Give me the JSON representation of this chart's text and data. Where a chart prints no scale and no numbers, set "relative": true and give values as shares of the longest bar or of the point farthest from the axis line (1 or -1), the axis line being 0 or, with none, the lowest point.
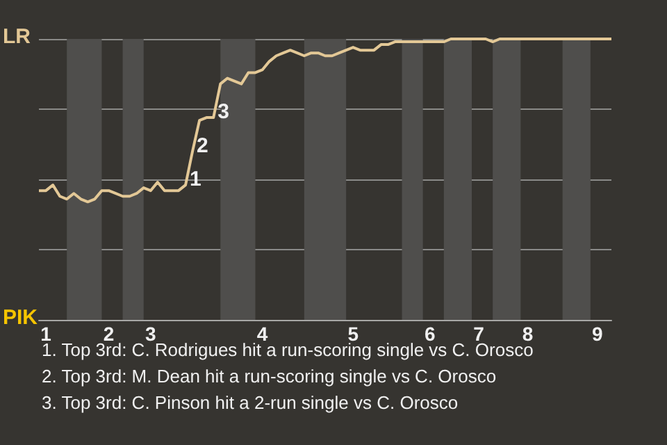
{
  "chart_data": {
    "type": "line",
    "relative": true,
    "categories": [
      null,
      "1",
      null,
      null,
      null,
      null,
      null,
      null,
      null,
      null,
      "2",
      null,
      null,
      null,
      null,
      null,
      "3",
      null,
      null,
      null,
      null,
      null,
      null,
      null,
      null,
      null,
      null,
      null,
      null,
      null,
      null,
      null,
      "4",
      null,
      null,
      null,
      null,
      null,
      null,
      null,
      null,
      null,
      null,
      null,
      null,
      "5",
      null,
      null,
      null,
      null,
      null,
      null,
      null,
      null,
      null,
      null,
      "6",
      null,
      null,
      null,
      null,
      null,
      null,
      "7",
      null,
      null,
      null,
      null,
      null,
      null,
      "8",
      null,
      null,
      null,
      null,
      null,
      null,
      null,
      null,
      null,
      "9",
      null,
      null
    ],
    "series": [
      {
        "color": "#e3c896",
        "values": [
          0.46,
          0.46,
          0.48,
          0.44,
          0.43,
          0.45,
          0.43,
          0.42,
          0.43,
          0.46,
          0.46,
          0.45,
          0.44,
          0.44,
          0.45,
          0.47,
          0.46,
          0.49,
          0.46,
          0.46,
          0.46,
          0.48,
          0.6,
          0.71,
          0.72,
          0.72,
          0.84,
          0.86,
          0.85,
          0.84,
          0.88,
          0.88,
          0.89,
          0.92,
          0.94,
          0.95,
          0.96,
          0.95,
          0.94,
          0.95,
          0.95,
          0.94,
          0.94,
          0.95,
          0.96,
          0.97,
          0.96,
          0.96,
          0.96,
          0.98,
          0.98,
          0.99,
          0.99,
          0.99,
          0.99,
          0.99,
          0.99,
          0.99,
          0.99,
          1,
          1,
          1,
          1,
          1,
          1,
          0.99,
          1,
          1,
          1,
          1,
          1,
          1,
          1,
          1,
          1,
          1,
          1,
          1,
          1,
          1,
          1,
          1,
          1
        ]
      }
    ],
    "grid": "y",
    "marker": "none",
    "annotations": [
      "LR",
      "PIK",
      "1",
      "2",
      "3",
      "1. Top 3rd: C. Rodrigues hit a run-scoring single vs C. Orosco",
      "2. Top 3rd: M. Dean hit a run-scoring single vs C. Orosco",
      "3. Top 3rd: C. Pinson hit a 2-run single vs C. Orosco"
    ]
  }
}
